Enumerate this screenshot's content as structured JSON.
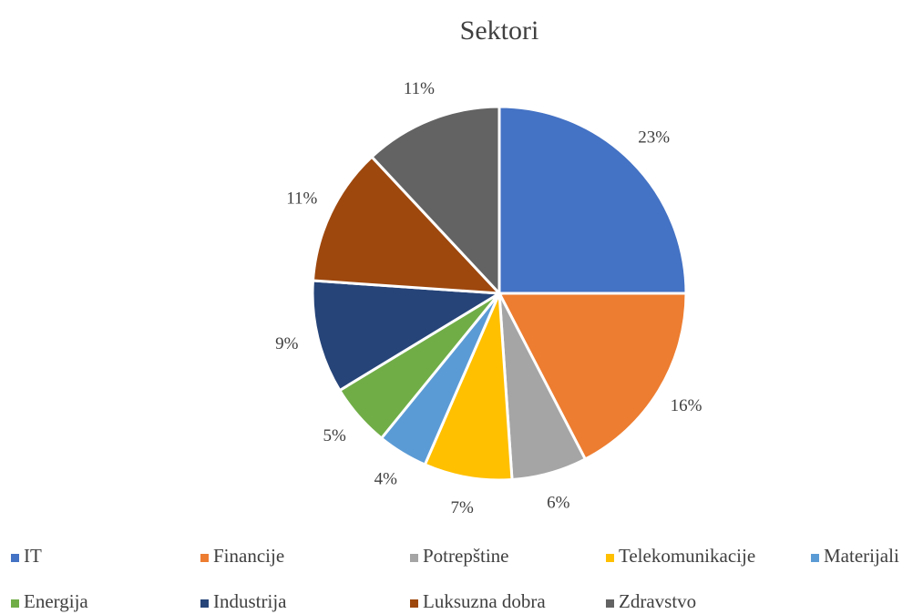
{
  "chart_data": {
    "type": "pie",
    "title": "Sektori",
    "categories": [
      "IT",
      "Financije",
      "Potrepštine",
      "Telekomunikacije",
      "Materijali",
      "Energija",
      "Industrija",
      "Luksuzna dobra",
      "Zdravstvo"
    ],
    "values": [
      23,
      16,
      6,
      7,
      4,
      5,
      9,
      11,
      11
    ],
    "value_labels": [
      "23%",
      "16%",
      "6%",
      "7%",
      "4%",
      "5%",
      "9%",
      "11%",
      "11%"
    ],
    "colors": [
      "#4472c4",
      "#ed7d31",
      "#a5a5a5",
      "#ffc000",
      "#5b9bd5",
      "#70ad47",
      "#264478",
      "#9e480e",
      "#636363"
    ],
    "legend": "bottom"
  }
}
